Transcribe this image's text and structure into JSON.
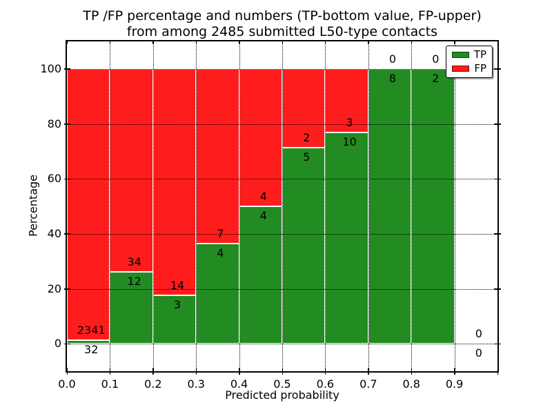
{
  "figure": {
    "title_line1": "TP /FP percentage and numbers (TP-bottom value, FP-upper)",
    "title_line2": "from among 2485 submitted L50-type contacts"
  },
  "chart_data": {
    "type": "bar",
    "stacked": true,
    "title": "TP /FP percentage and numbers (TP-bottom value, FP-upper)\nfrom among 2485 submitted L50-type contacts",
    "xlabel": "Predicted probability",
    "ylabel": "Percentage",
    "total_contacts": 2485,
    "xlim": [
      0.0,
      1.0
    ],
    "ylim": [
      -10,
      110
    ],
    "grid": "dotted",
    "x_ticks": [
      {
        "value": 0.0,
        "label": "0.0"
      },
      {
        "value": 0.1,
        "label": "0.1"
      },
      {
        "value": 0.2,
        "label": "0.2"
      },
      {
        "value": 0.3,
        "label": "0.3"
      },
      {
        "value": 0.4,
        "label": "0.4"
      },
      {
        "value": 0.5,
        "label": "0.5"
      },
      {
        "value": 0.6,
        "label": "0.6"
      },
      {
        "value": 0.7,
        "label": "0.7"
      },
      {
        "value": 0.8,
        "label": "0.8"
      },
      {
        "value": 0.9,
        "label": "0.9"
      },
      {
        "value": 1.0,
        "label": ""
      }
    ],
    "y_ticks": [
      {
        "value": 0,
        "label": "0"
      },
      {
        "value": 20,
        "label": "20"
      },
      {
        "value": 40,
        "label": "40"
      },
      {
        "value": 60,
        "label": "60"
      },
      {
        "value": 80,
        "label": "80"
      },
      {
        "value": 100,
        "label": "100"
      }
    ],
    "bins": [
      {
        "x_start": 0.0,
        "x_end": 0.1,
        "tp_count": 32,
        "fp_count": 2341,
        "tp_pct": 1.35,
        "fp_pct": 98.65
      },
      {
        "x_start": 0.1,
        "x_end": 0.2,
        "tp_count": 12,
        "fp_count": 34,
        "tp_pct": 26.09,
        "fp_pct": 73.91
      },
      {
        "x_start": 0.2,
        "x_end": 0.3,
        "tp_count": 3,
        "fp_count": 14,
        "tp_pct": 17.65,
        "fp_pct": 82.35
      },
      {
        "x_start": 0.3,
        "x_end": 0.4,
        "tp_count": 4,
        "fp_count": 7,
        "tp_pct": 36.36,
        "fp_pct": 63.64
      },
      {
        "x_start": 0.4,
        "x_end": 0.5,
        "tp_count": 4,
        "fp_count": 4,
        "tp_pct": 50.0,
        "fp_pct": 50.0
      },
      {
        "x_start": 0.5,
        "x_end": 0.6,
        "tp_count": 5,
        "fp_count": 2,
        "tp_pct": 71.43,
        "fp_pct": 28.57
      },
      {
        "x_start": 0.6,
        "x_end": 0.7,
        "tp_count": 10,
        "fp_count": 3,
        "tp_pct": 76.92,
        "fp_pct": 23.08
      },
      {
        "x_start": 0.7,
        "x_end": 0.8,
        "tp_count": 8,
        "fp_count": 0,
        "tp_pct": 100.0,
        "fp_pct": 0.0
      },
      {
        "x_start": 0.8,
        "x_end": 0.9,
        "tp_count": 2,
        "fp_count": 0,
        "tp_pct": 100.0,
        "fp_pct": 0.0
      },
      {
        "x_start": 0.9,
        "x_end": 1.0,
        "tp_count": 0,
        "fp_count": 0,
        "tp_pct": 0.0,
        "fp_pct": 0.0
      }
    ],
    "legend": {
      "position": "upper-right",
      "entries": [
        {
          "label": "TP",
          "color": "#228b22"
        },
        {
          "label": "FP",
          "color": "#ff1c1c"
        }
      ]
    },
    "colors": {
      "tp": "#228b22",
      "fp": "#ff1c1c",
      "bar_edge": "#ffffff",
      "grid": "#000000",
      "text": "#000000"
    }
  }
}
